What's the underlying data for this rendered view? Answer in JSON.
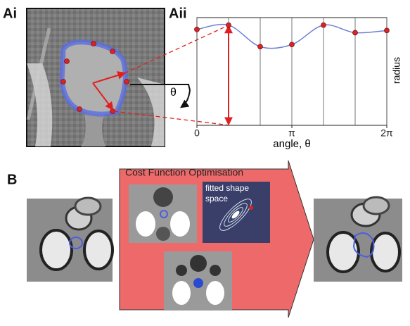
{
  "labels": {
    "ai": "Ai",
    "aii": "Aii",
    "b": "B",
    "theta": "θ",
    "cost": "Cost Function Optimisation",
    "shape_space": [
      "fitted shape",
      "space"
    ]
  },
  "plot": {
    "type": "line",
    "x_label": "angle, θ",
    "y_label": "radius",
    "xlim": [
      0,
      6.2832
    ],
    "ylim": [
      0,
      1
    ],
    "xticks": [
      {
        "value": 0,
        "label": "0"
      },
      {
        "value": 3.1416,
        "label": "π"
      },
      {
        "value": 6.2832,
        "label": "2π"
      }
    ],
    "x": [
      0,
      1.0472,
      2.0944,
      3.1416,
      4.1888,
      5.236,
      6.2832
    ],
    "values": [
      0.89,
      0.93,
      0.73,
      0.75,
      0.93,
      0.86,
      0.88
    ],
    "color": "#6a7fd6",
    "marker_color": "#d22"
  }
}
